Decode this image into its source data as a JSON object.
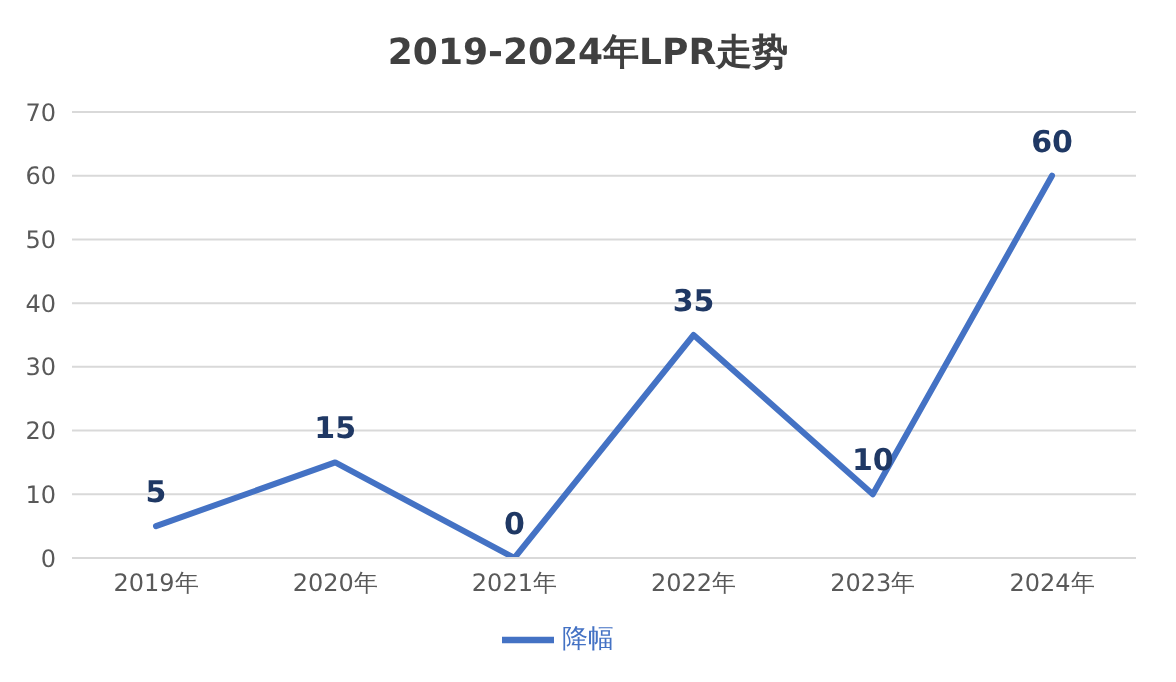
{
  "chart_data": {
    "type": "line",
    "title": "2019-2024年LPR走势",
    "categories": [
      "2019年",
      "2020年",
      "2021年",
      "2022年",
      "2023年",
      "2024年"
    ],
    "series": [
      {
        "name": "降幅",
        "color": "#4472c4",
        "values": [
          5,
          15,
          0,
          35,
          10,
          60
        ]
      }
    ],
    "ylim": [
      0,
      70
    ],
    "yticks": [
      0,
      10,
      20,
      30,
      40,
      50,
      60,
      70
    ],
    "grid": "y",
    "legend": "bottom",
    "data_labels": true,
    "marker": "none"
  }
}
